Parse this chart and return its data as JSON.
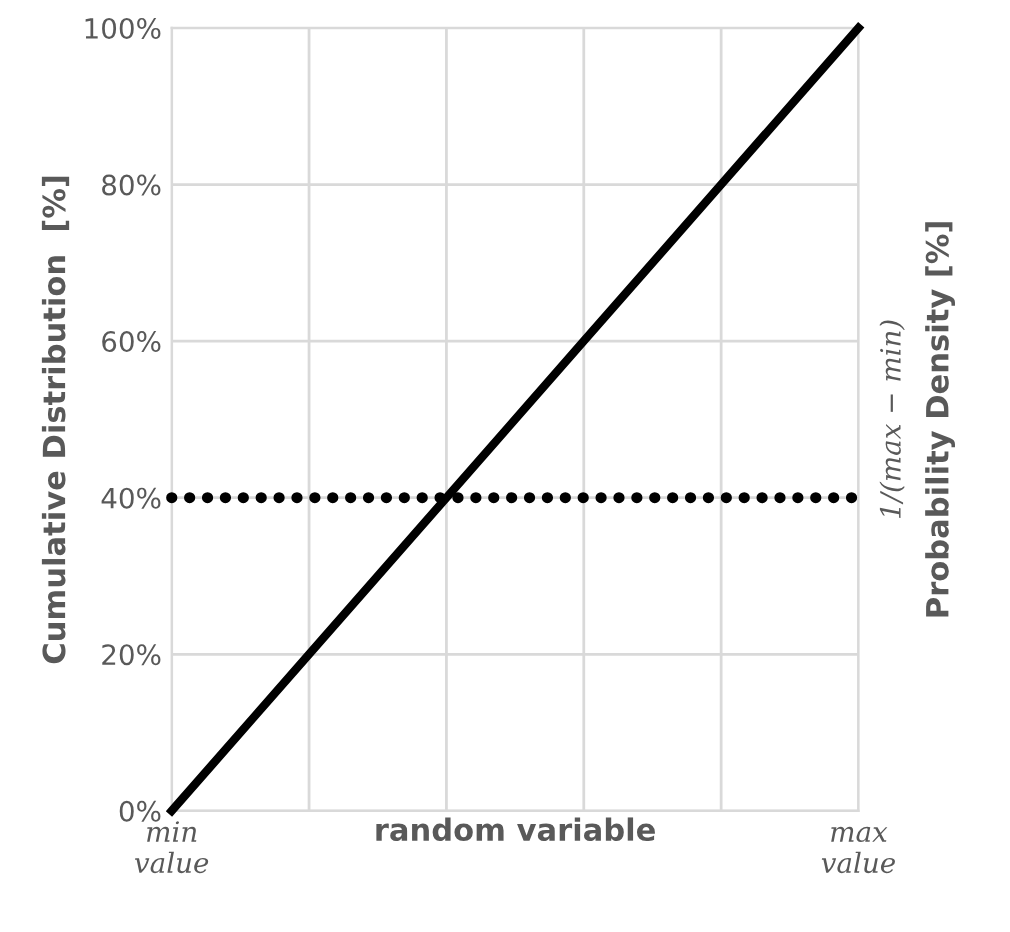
{
  "chart_data": {
    "type": "line",
    "xlabel": "random variable",
    "ylabel": "Cumulative Distribution  [%]",
    "y2label": "Probability Density [%]",
    "annotations": [
      "1/(max − min)"
    ],
    "categories": [
      "min\nvalue",
      null,
      null,
      null,
      null,
      "max\nvalue"
    ],
    "ylim": [
      0,
      100
    ],
    "yticks": [
      {
        "value": 0,
        "label": "0%"
      },
      {
        "value": 20,
        "label": "20%"
      },
      {
        "value": 40,
        "label": "40%"
      },
      {
        "value": 60,
        "label": "60%"
      },
      {
        "value": 80,
        "label": "80%"
      },
      {
        "value": 100,
        "label": "100%"
      }
    ],
    "grid": true,
    "legend": false,
    "marker": "none",
    "series": [
      {
        "values": [
          0,
          20,
          40,
          60,
          80,
          100
        ],
        "color": "#000000",
        "line_style": "solid"
      },
      {
        "values": [
          40,
          40,
          40,
          40,
          40,
          40
        ],
        "color": "#000000",
        "line_style": "dotted"
      }
    ]
  }
}
